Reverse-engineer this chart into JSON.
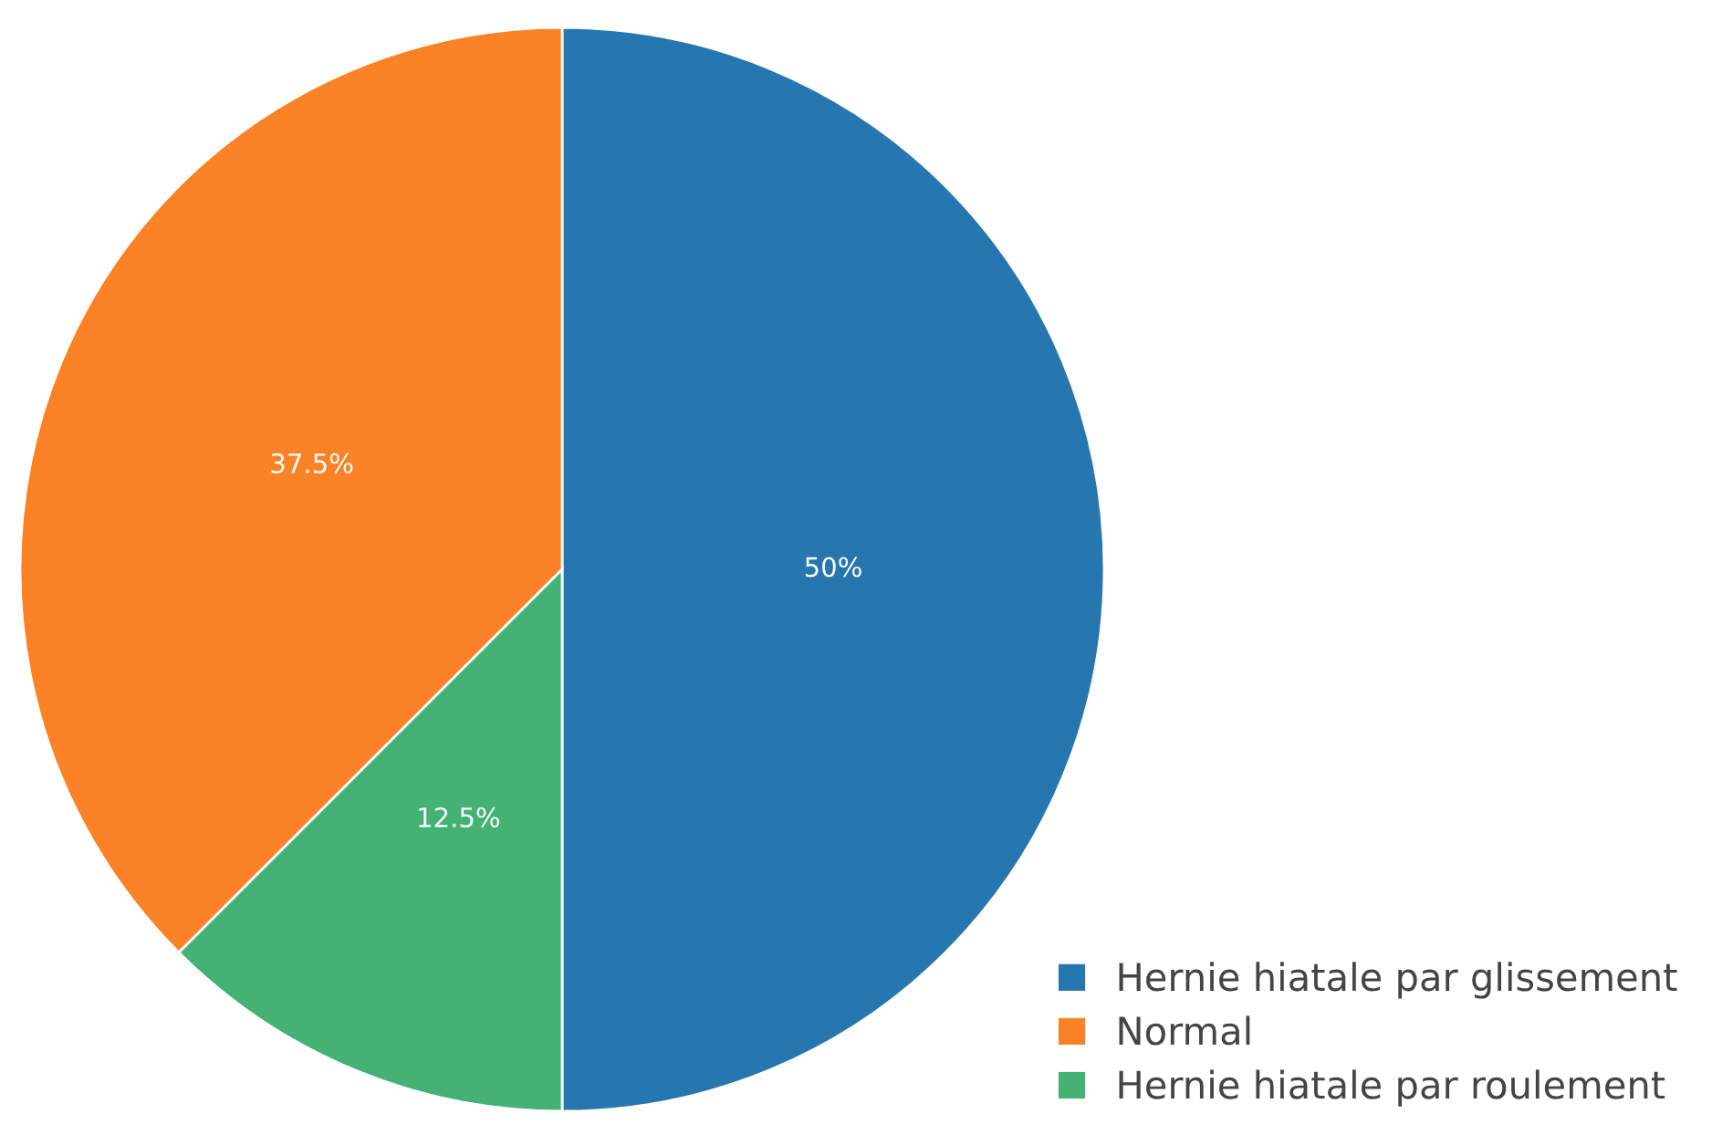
{
  "chart_data": {
    "type": "pie",
    "categories": [
      "Hernie hiatale par glissement",
      "Normal",
      "Hernie hiatale par roulement"
    ],
    "values": [
      50,
      37.5,
      12.5
    ],
    "colors": [
      "#2677b0",
      "#fb8226",
      "#44b274"
    ],
    "value_labels": [
      "50%",
      "37.5%",
      "12.5%"
    ],
    "legend": "bottom right"
  }
}
